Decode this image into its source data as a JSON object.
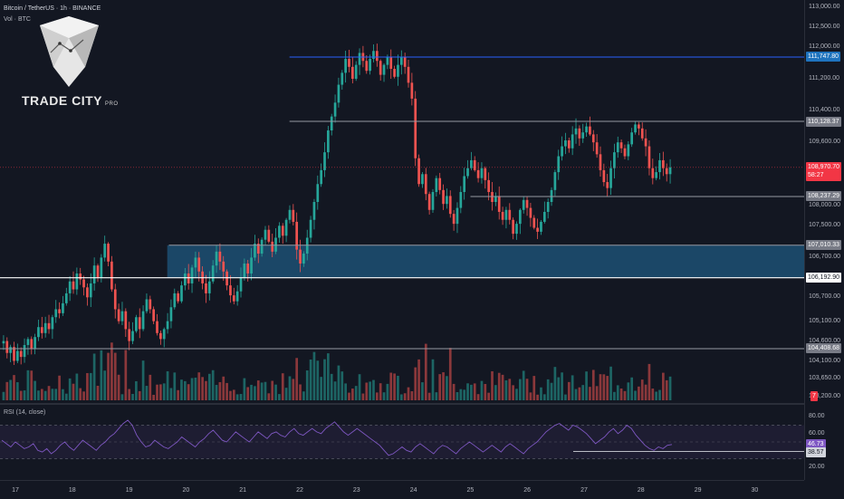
{
  "header": {
    "symbol_title": "Bitcoin / TetherUS · 1h · BINANCE",
    "volume_legend": "Vol · BTC"
  },
  "logo": {
    "text": "TRADE CITY",
    "suffix": "PRO"
  },
  "rsi": {
    "legend": "RSI (14, close)",
    "ticks": [
      "80.00",
      "60.00",
      "20.00"
    ],
    "value_label": "46.73",
    "level_label": "38.57",
    "line_color": "#7e57c2",
    "band_upper": 70,
    "band_lower": 30,
    "level_value": 38.57,
    "level_start_x_label": "27",
    "series": [
      52,
      48,
      44,
      50,
      46,
      42,
      44,
      48,
      40,
      38,
      42,
      36,
      40,
      46,
      50,
      44,
      40,
      46,
      52,
      48,
      44,
      40,
      46,
      50,
      56,
      60,
      66,
      72,
      76,
      70,
      58,
      50,
      44,
      46,
      52,
      48,
      44,
      42,
      46,
      50,
      56,
      52,
      48,
      44,
      50,
      54,
      60,
      64,
      58,
      52,
      50,
      56,
      62,
      58,
      54,
      50,
      56,
      62,
      58,
      54,
      60,
      62,
      58,
      56,
      62,
      66,
      60,
      58,
      62,
      66,
      62,
      60,
      66,
      70,
      74,
      68,
      62,
      58,
      62,
      66,
      62,
      58,
      54,
      50,
      46,
      40,
      34,
      36,
      40,
      44,
      40,
      38,
      44,
      48,
      44,
      40,
      36,
      42,
      46,
      44,
      40,
      36,
      42,
      46,
      50,
      46,
      42,
      38,
      42,
      46,
      42,
      38,
      44,
      48,
      44,
      40,
      36,
      42,
      46,
      50,
      56,
      62,
      66,
      70,
      72,
      68,
      64,
      70,
      68,
      64,
      60,
      54,
      48,
      52,
      56,
      62,
      66,
      60,
      64,
      70,
      66,
      58,
      52,
      46,
      42,
      40,
      44,
      42,
      46,
      47
    ]
  },
  "price_axis": {
    "ticks": [
      {
        "label": "113,000.00",
        "value": 113000
      },
      {
        "label": "112,500.00",
        "value": 112500
      },
      {
        "label": "112,000.00",
        "value": 112000
      },
      {
        "label": "111,200.00",
        "value": 111200
      },
      {
        "label": "110,400.00",
        "value": 110400
      },
      {
        "label": "109,600.00",
        "value": 109600
      },
      {
        "label": "108,000.00",
        "value": 108000
      },
      {
        "label": "107,500.00",
        "value": 107500
      },
      {
        "label": "106,700.00",
        "value": 106700
      },
      {
        "label": "105,700.00",
        "value": 105700
      },
      {
        "label": "105,100.00",
        "value": 105100
      },
      {
        "label": "104,600.00",
        "value": 104600
      },
      {
        "label": "104,100.00",
        "value": 104100
      },
      {
        "label": "103,650.00",
        "value": 103650
      },
      {
        "label": "103,200.00",
        "value": 103200
      }
    ],
    "current_price": {
      "label": "108,970.70",
      "countdown": "58:27",
      "value": 108970.7,
      "color": "#f23645"
    },
    "volume_badge": "7"
  },
  "levels": [
    {
      "label": "111,747.80",
      "value": 111747.8,
      "color": "#2962ff",
      "bg": "#1e73be",
      "fg": "#ffffff",
      "start_frac": 0.36
    },
    {
      "label": "110,128.37",
      "value": 110128.37,
      "color": "#9598a1",
      "bg": "#787b86",
      "fg": "#ffffff",
      "start_frac": 0.36
    },
    {
      "label": "108,237.29",
      "value": 108237.29,
      "color": "#9598a1",
      "bg": "#787b86",
      "fg": "#ffffff",
      "start_frac": 0.585
    },
    {
      "label": "107,010.33",
      "value": 107010.33,
      "color": "#9598a1",
      "bg": "#787b86",
      "fg": "#ffffff",
      "start_frac": 0.21
    },
    {
      "label": "106,192.90",
      "value": 106192.9,
      "color": "#ffffff",
      "bg": "#ffffff",
      "fg": "#131722",
      "start_frac": 0.0
    },
    {
      "label": "104,408.68",
      "value": 104408.68,
      "color": "#9598a1",
      "bg": "#787b86",
      "fg": "#ffffff",
      "start_frac": 0.0
    }
  ],
  "zone": {
    "top": 107010.33,
    "bottom": 106192.9,
    "start_frac": 0.208,
    "color": "#1f5d85"
  },
  "time_axis": {
    "labels": [
      "17",
      "18",
      "19",
      "20",
      "21",
      "22",
      "23",
      "24",
      "25",
      "26",
      "27",
      "28",
      "29",
      "30"
    ]
  },
  "chart_data": {
    "type": "candlestick",
    "title": "Bitcoin / TetherUS · 1h · BINANCE",
    "ylim": [
      103200,
      113000
    ],
    "up_color": "#26a69a",
    "down_color": "#ef5350",
    "closes": [
      104600,
      104300,
      104450,
      104100,
      104350,
      104200,
      104500,
      104650,
      104400,
      104700,
      104950,
      104800,
      105050,
      104900,
      105200,
      105400,
      105300,
      105550,
      105800,
      106100,
      105900,
      106300,
      106150,
      105950,
      105700,
      106050,
      106500,
      106200,
      106700,
      107050,
      106600,
      105900,
      105400,
      105100,
      105350,
      104900,
      104600,
      104850,
      105200,
      104900,
      105350,
      105650,
      105400,
      105100,
      104800,
      104650,
      104900,
      105100,
      105450,
      105800,
      105600,
      106000,
      106300,
      106050,
      106450,
      106700,
      106350,
      106050,
      105800,
      106100,
      106500,
      106850,
      106600,
      106350,
      106000,
      105750,
      105600,
      105850,
      106200,
      106550,
      106300,
      106700,
      107050,
      106800,
      107150,
      107400,
      107100,
      106850,
      107200,
      107500,
      107250,
      107650,
      107900,
      107600,
      106900,
      106550,
      106800,
      107200,
      107650,
      108100,
      108550,
      108900,
      109350,
      109900,
      110250,
      110600,
      111050,
      111350,
      111700,
      111500,
      111200,
      111550,
      111850,
      111650,
      111400,
      111700,
      111900,
      111650,
      111300,
      111550,
      111750,
      111450,
      111250,
      111550,
      111750,
      111500,
      111100,
      110700,
      109200,
      108550,
      108800,
      108300,
      107900,
      108350,
      108700,
      108400,
      108050,
      108250,
      107800,
      107550,
      107950,
      108350,
      108750,
      108950,
      109150,
      108900,
      108700,
      108950,
      108650,
      108350,
      108100,
      108250,
      107850,
      107650,
      107900,
      107650,
      107300,
      107550,
      107900,
      108150,
      107950,
      107700,
      107450,
      107350,
      107600,
      107850,
      108100,
      108400,
      108850,
      109250,
      109500,
      109650,
      109450,
      109800,
      109950,
      109700,
      109850,
      110000,
      109800,
      109600,
      109300,
      108900,
      108600,
      108450,
      108950,
      109350,
      109600,
      109450,
      109250,
      109550,
      109850,
      110050,
      109950,
      109700,
      109500,
      108950,
      108700,
      108850,
      109150,
      108950,
      108800,
      108970
    ]
  }
}
